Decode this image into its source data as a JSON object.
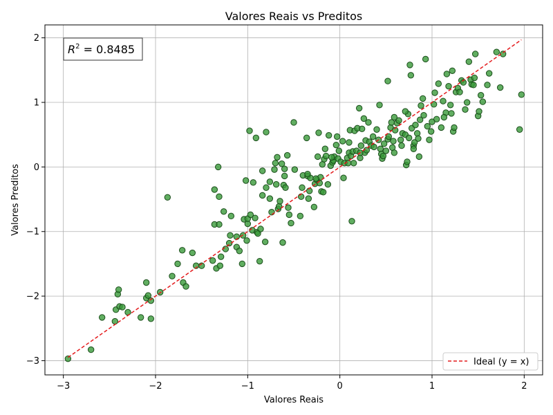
{
  "chart_data": {
    "type": "scatter",
    "title": "Valores Reais vs Preditos",
    "xlabel": "Valores Reais",
    "ylabel": "Valores Preditos",
    "xlim": [
      -3.2,
      2.2
    ],
    "ylim": [
      -3.22,
      2.2
    ],
    "xticks": [
      -3,
      -2,
      -1,
      0,
      1,
      2
    ],
    "yticks": [
      -3,
      -2,
      -1,
      0,
      1,
      2
    ],
    "xtick_labels": [
      "−3",
      "−2",
      "−1",
      "0",
      "1",
      "2"
    ],
    "ytick_labels": [
      "−3",
      "−2",
      "−1",
      "0",
      "1",
      "2"
    ],
    "grid": true,
    "annotation": {
      "r2_symbol": "R",
      "r2_exponent": "2",
      "r2_text": " = 0.8485",
      "placement": "top-left"
    },
    "legend": {
      "placement": "bottom-right",
      "entries": [
        {
          "label": "Ideal (y = x)",
          "color": "#e41a1c",
          "style": "dashed"
        }
      ]
    },
    "ideal_line": {
      "x": [
        -2.95,
        1.97
      ],
      "y": [
        -2.95,
        1.97
      ]
    },
    "colors": {
      "point_fill": "#3a9a3a",
      "point_edge": "#1a4d1a",
      "ideal": "#e41a1c",
      "grid": "#b0b0b0"
    },
    "series": [
      {
        "points": [
          [
            -2.95,
            -2.97
          ],
          [
            -2.7,
            -2.83
          ],
          [
            -2.58,
            -2.33
          ],
          [
            -2.44,
            -2.39
          ],
          [
            -2.43,
            -2.21
          ],
          [
            -2.41,
            -1.97
          ],
          [
            -2.4,
            -1.9
          ],
          [
            -2.39,
            -2.16
          ],
          [
            -2.36,
            -2.17
          ],
          [
            -2.3,
            -2.25
          ],
          [
            -2.16,
            -2.33
          ],
          [
            -2.1,
            -1.79
          ],
          [
            -2.1,
            -2.03
          ],
          [
            -2.08,
            -1.99
          ],
          [
            -2.05,
            -2.35
          ],
          [
            -2.05,
            -2.07
          ],
          [
            -1.95,
            -1.94
          ],
          [
            -1.87,
            -0.47
          ],
          [
            -1.82,
            -1.69
          ],
          [
            -1.76,
            -1.5
          ],
          [
            -1.71,
            -1.29
          ],
          [
            -1.7,
            -1.79
          ],
          [
            -1.67,
            -1.85
          ],
          [
            -1.6,
            -1.33
          ],
          [
            -1.56,
            -1.53
          ],
          [
            -1.5,
            -1.53
          ],
          [
            -1.38,
            -1.45
          ],
          [
            -1.36,
            -0.35
          ],
          [
            -1.36,
            -0.89
          ],
          [
            -1.34,
            -1.57
          ],
          [
            -1.32,
            -0.0
          ],
          [
            -1.31,
            -0.46
          ],
          [
            -1.31,
            -0.89
          ],
          [
            -1.3,
            -1.53
          ],
          [
            -1.29,
            -1.39
          ],
          [
            -1.26,
            -0.69
          ],
          [
            -1.24,
            -1.27
          ],
          [
            -1.2,
            -1.18
          ],
          [
            -1.19,
            -1.06
          ],
          [
            -1.18,
            -0.76
          ],
          [
            -1.12,
            -1.08
          ],
          [
            -1.12,
            -1.24
          ],
          [
            -1.09,
            -1.3
          ],
          [
            -1.06,
            -1.5
          ],
          [
            -1.05,
            -1.06
          ],
          [
            -1.04,
            -0.81
          ],
          [
            -1.02,
            -0.21
          ],
          [
            -1.01,
            -1.14
          ],
          [
            -1.0,
            -0.88
          ],
          [
            -1.0,
            -0.8
          ],
          [
            -0.98,
            0.56
          ],
          [
            -0.95,
            -0.98
          ],
          [
            -0.94,
            -0.24
          ],
          [
            -0.92,
            -0.79
          ],
          [
            -0.91,
            0.45
          ],
          [
            -0.9,
            -1.01
          ],
          [
            -0.89,
            -1.03
          ],
          [
            -0.87,
            -1.46
          ],
          [
            -0.86,
            -0.96
          ],
          [
            -0.84,
            -0.44
          ],
          [
            -0.84,
            -0.06
          ],
          [
            -0.81,
            -1.16
          ],
          [
            -0.8,
            -0.32
          ],
          [
            -0.8,
            0.54
          ],
          [
            -0.76,
            -0.49
          ],
          [
            -0.76,
            -0.23
          ],
          [
            -0.71,
            -0.04
          ],
          [
            -0.7,
            0.06
          ],
          [
            -0.69,
            -0.27
          ],
          [
            -0.68,
            0.15
          ],
          [
            -0.67,
            -0.65
          ],
          [
            -0.66,
            -0.61
          ],
          [
            -0.65,
            -0.53
          ],
          [
            -0.63,
            0.05
          ],
          [
            -0.62,
            -1.17
          ],
          [
            -0.61,
            -0.28
          ],
          [
            -0.6,
            -0.03
          ],
          [
            -0.6,
            -0.14
          ],
          [
            -0.59,
            -0.32
          ],
          [
            -0.57,
            0.18
          ],
          [
            -0.55,
            -0.74
          ],
          [
            -0.53,
            -0.87
          ],
          [
            -0.5,
            0.69
          ],
          [
            -0.49,
            -0.04
          ],
          [
            -0.43,
            -0.76
          ],
          [
            -0.42,
            -0.46
          ],
          [
            -0.41,
            -0.32
          ],
          [
            -0.4,
            -0.13
          ],
          [
            -0.36,
            0.45
          ],
          [
            -0.35,
            -0.14
          ],
          [
            -0.34,
            -0.49
          ],
          [
            -0.33,
            -0.37
          ],
          [
            -0.32,
            -0.17
          ],
          [
            -0.28,
            -0.62
          ],
          [
            -0.27,
            -0.26
          ],
          [
            -0.25,
            -0.2
          ],
          [
            -0.24,
            0.16
          ],
          [
            -0.23,
            0.53
          ],
          [
            -0.22,
            -0.25
          ],
          [
            -0.21,
            -0.16
          ],
          [
            -0.2,
            -0.38
          ],
          [
            -0.19,
            0.04
          ],
          [
            -0.18,
            -0.39
          ],
          [
            -0.17,
            0.12
          ],
          [
            -0.16,
            0.28
          ],
          [
            -0.15,
            0.17
          ],
          [
            -0.13,
            -0.27
          ],
          [
            -0.12,
            0.49
          ],
          [
            -0.1,
            0.02
          ],
          [
            -0.08,
            0.07
          ],
          [
            -0.07,
            0.1
          ],
          [
            -0.06,
            0.16
          ],
          [
            -0.04,
            0.34
          ],
          [
            -0.03,
            0.47
          ],
          [
            -0.02,
            0.13
          ],
          [
            -0.01,
            0.25
          ],
          [
            0.01,
            0.08
          ],
          [
            0.03,
            0.4
          ],
          [
            0.04,
            -0.17
          ],
          [
            0.05,
            0.06
          ],
          [
            0.08,
            0.14
          ],
          [
            0.1,
            0.22
          ],
          [
            0.1,
            0.38
          ],
          [
            0.11,
            0.57
          ],
          [
            0.12,
            0.17
          ],
          [
            0.13,
            -0.84
          ],
          [
            0.14,
            0.24
          ],
          [
            0.15,
            0.06
          ],
          [
            0.16,
            0.56
          ],
          [
            0.18,
            0.25
          ],
          [
            0.19,
            0.6
          ],
          [
            0.21,
            0.91
          ],
          [
            0.22,
            0.14
          ],
          [
            0.23,
            0.33
          ],
          [
            0.24,
            0.59
          ],
          [
            0.26,
            0.75
          ],
          [
            0.27,
            0.22
          ],
          [
            0.28,
            0.41
          ],
          [
            0.29,
            0.26
          ],
          [
            0.31,
            0.69
          ],
          [
            0.32,
            0.39
          ],
          [
            0.34,
            0.33
          ],
          [
            0.36,
            0.47
          ],
          [
            0.4,
            0.58
          ],
          [
            0.42,
            0.42
          ],
          [
            0.43,
            0.96
          ],
          [
            0.44,
            0.28
          ],
          [
            0.45,
            0.2
          ],
          [
            0.46,
            0.13
          ],
          [
            0.48,
            0.36
          ],
          [
            0.5,
            0.25
          ],
          [
            0.52,
            1.33
          ],
          [
            0.52,
            0.43
          ],
          [
            0.53,
            0.47
          ],
          [
            0.55,
            0.61
          ],
          [
            0.56,
            0.69
          ],
          [
            0.57,
            0.3
          ],
          [
            0.58,
            0.4
          ],
          [
            0.59,
            0.22
          ],
          [
            0.6,
            0.57
          ],
          [
            0.62,
            0.68
          ],
          [
            0.64,
            0.72
          ],
          [
            0.66,
            0.42
          ],
          [
            0.67,
            0.33
          ],
          [
            0.68,
            0.52
          ],
          [
            0.71,
            0.5
          ],
          [
            0.72,
            0.03
          ],
          [
            0.73,
            0.08
          ],
          [
            0.74,
            0.82
          ],
          [
            0.75,
            0.45
          ],
          [
            0.76,
            1.58
          ],
          [
            0.77,
            1.42
          ],
          [
            0.78,
            0.6
          ],
          [
            0.8,
            0.33
          ],
          [
            0.8,
            0.28
          ],
          [
            0.81,
            0.38
          ],
          [
            0.82,
            0.65
          ],
          [
            0.84,
            0.52
          ],
          [
            0.86,
            0.16
          ],
          [
            0.87,
            0.73
          ],
          [
            0.88,
            0.95
          ],
          [
            0.9,
            1.06
          ],
          [
            0.91,
            0.8
          ],
          [
            0.93,
            1.67
          ],
          [
            0.95,
            0.63
          ],
          [
            0.97,
            0.42
          ],
          [
            0.99,
            0.55
          ],
          [
            1.0,
            0.7
          ],
          [
            1.02,
            0.97
          ],
          [
            1.03,
            1.15
          ],
          [
            1.05,
            0.74
          ],
          [
            1.07,
            1.29
          ],
          [
            1.1,
            0.61
          ],
          [
            1.12,
            1.02
          ],
          [
            1.15,
            0.84
          ],
          [
            1.16,
            1.44
          ],
          [
            1.18,
            1.25
          ],
          [
            1.2,
            0.96
          ],
          [
            1.22,
            1.49
          ],
          [
            1.23,
            0.55
          ],
          [
            1.24,
            0.61
          ],
          [
            1.26,
            1.16
          ],
          [
            1.28,
            1.22
          ],
          [
            1.3,
            1.16
          ],
          [
            1.32,
            1.34
          ],
          [
            1.34,
            1.31
          ],
          [
            1.36,
            0.89
          ],
          [
            1.38,
            1.0
          ],
          [
            1.4,
            1.63
          ],
          [
            1.42,
            1.35
          ],
          [
            1.43,
            1.28
          ],
          [
            1.45,
            1.27
          ],
          [
            1.46,
            1.38
          ],
          [
            1.47,
            1.75
          ],
          [
            1.5,
            0.79
          ],
          [
            1.51,
            0.86
          ],
          [
            1.53,
            1.11
          ],
          [
            1.55,
            1.01
          ],
          [
            1.6,
            1.27
          ],
          [
            1.62,
            1.45
          ],
          [
            1.7,
            1.78
          ],
          [
            1.74,
            1.23
          ],
          [
            1.77,
            1.75
          ],
          [
            1.95,
            0.58
          ],
          [
            1.97,
            1.12
          ],
          [
            -0.97,
            -0.74
          ],
          [
            -0.56,
            -0.63
          ],
          [
            0.59,
            0.77
          ],
          [
            0.09,
            0.06
          ],
          [
            -0.09,
            0.15
          ],
          [
            1.21,
            0.83
          ],
          [
            0.37,
            0.31
          ],
          [
            -0.26,
            -0.18
          ],
          [
            0.47,
            0.17
          ],
          [
            1.13,
            0.77
          ],
          [
            -0.35,
            -0.11
          ],
          [
            0.71,
            0.86
          ],
          [
            0.22,
            0.22
          ],
          [
            -0.74,
            -0.7
          ],
          [
            0.85,
            0.44
          ]
        ]
      }
    ]
  }
}
